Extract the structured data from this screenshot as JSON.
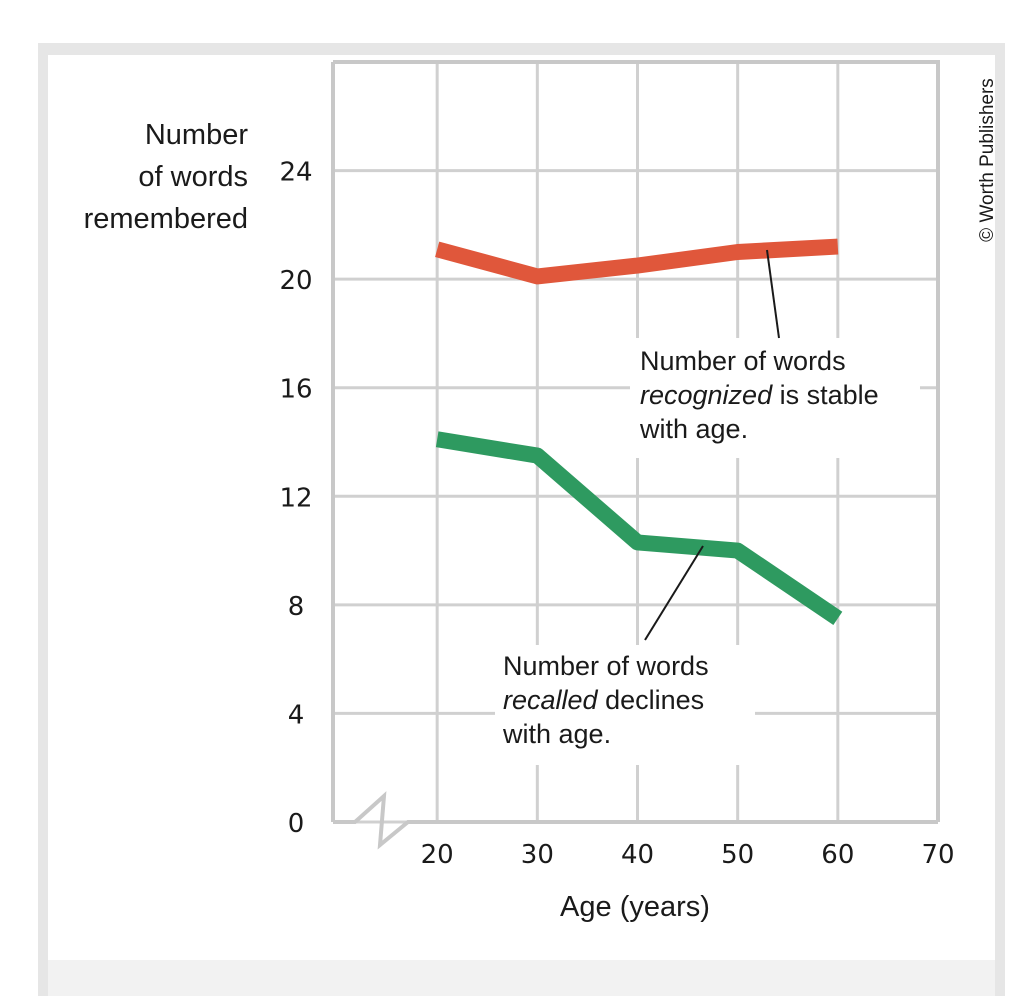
{
  "chart_data": {
    "type": "line",
    "y_label_lines": [
      "Number",
      "of words",
      "remembered"
    ],
    "x_label": "Age (years)",
    "credit": "© Worth Publishers",
    "x": [
      20,
      30,
      40,
      50,
      60
    ],
    "series": [
      {
        "name": "recognized",
        "color": "#e0573b",
        "values": [
          21.1,
          20.1,
          20.5,
          21.0,
          21.2
        ]
      },
      {
        "name": "recalled",
        "color": "#2e9a60",
        "values": [
          14.1,
          13.5,
          10.3,
          10.0,
          7.5
        ]
      }
    ],
    "annotations": [
      {
        "line1": "Number of words",
        "italic": "recognized",
        "rest": " is stable",
        "line3": "with age."
      },
      {
        "line1": "Number of words",
        "italic": "recalled",
        "rest": " declines",
        "line3": "with age."
      }
    ],
    "xlim": [
      10,
      70
    ],
    "ylim": [
      0,
      28
    ],
    "xticks": [
      20,
      30,
      40,
      50,
      60,
      70
    ],
    "yticks": [
      0,
      4,
      8,
      12,
      16,
      20,
      24
    ],
    "grid": true
  }
}
